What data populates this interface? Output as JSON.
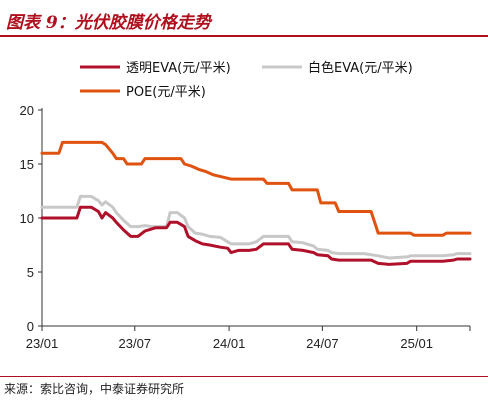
{
  "figure": {
    "title": "图表 9：光伏胶膜价格走势",
    "source": "来源：索比咨询，中泰证券研究所"
  },
  "colors": {
    "accent": "#b0101d",
    "transparent_eva": "#b0102a",
    "white_eva": "#c8c8c8",
    "poe": "#e0520f"
  },
  "chart_data": {
    "type": "line",
    "x_start": "2023-01-01",
    "x_end": "2025-04-15",
    "x_tick_labels": [
      {
        "date": "2023-01-01",
        "label": "23/01"
      },
      {
        "date": "2023-07-01",
        "label": "23/07"
      },
      {
        "date": "2024-01-01",
        "label": "24/01"
      },
      {
        "date": "2024-07-01",
        "label": "24/07"
      },
      {
        "date": "2025-01-01",
        "label": "25/01"
      }
    ],
    "ylim": [
      0,
      20
    ],
    "y_ticks": [
      0,
      5,
      10,
      15,
      20
    ],
    "grid": false,
    "legend": "top",
    "series": [
      {
        "name": "透明EVA(元/平米)",
        "color": "#b0102a",
        "points": [
          [
            "2023-01-01",
            10.0
          ],
          [
            "2023-03-10",
            10.0
          ],
          [
            "2023-03-17",
            11.0
          ],
          [
            "2023-04-07",
            11.0
          ],
          [
            "2023-04-21",
            10.6
          ],
          [
            "2023-04-28",
            10.0
          ],
          [
            "2023-05-05",
            10.5
          ],
          [
            "2023-05-19",
            10.0
          ],
          [
            "2023-05-26",
            9.6
          ],
          [
            "2023-06-09",
            8.9
          ],
          [
            "2023-06-23",
            8.3
          ],
          [
            "2023-07-07",
            8.3
          ],
          [
            "2023-07-21",
            8.8
          ],
          [
            "2023-08-04",
            9.0
          ],
          [
            "2023-08-11",
            9.1
          ],
          [
            "2023-09-01",
            9.1
          ],
          [
            "2023-09-08",
            9.6
          ],
          [
            "2023-09-22",
            9.6
          ],
          [
            "2023-10-06",
            9.2
          ],
          [
            "2023-10-13",
            8.3
          ],
          [
            "2023-10-27",
            7.9
          ],
          [
            "2023-11-10",
            7.6
          ],
          [
            "2023-11-24",
            7.5
          ],
          [
            "2023-12-15",
            7.3
          ],
          [
            "2023-12-29",
            7.2
          ],
          [
            "2024-01-05",
            6.8
          ],
          [
            "2024-01-19",
            7.0
          ],
          [
            "2024-02-09",
            7.0
          ],
          [
            "2024-02-23",
            7.1
          ],
          [
            "2024-03-08",
            7.6
          ],
          [
            "2024-03-22",
            7.6
          ],
          [
            "2024-04-26",
            7.6
          ],
          [
            "2024-05-03",
            7.1
          ],
          [
            "2024-05-24",
            7.0
          ],
          [
            "2024-06-14",
            6.8
          ],
          [
            "2024-06-21",
            6.6
          ],
          [
            "2024-07-12",
            6.5
          ],
          [
            "2024-07-19",
            6.2
          ],
          [
            "2024-08-02",
            6.1
          ],
          [
            "2024-09-20",
            6.1
          ],
          [
            "2024-10-04",
            6.1
          ],
          [
            "2024-10-18",
            5.8
          ],
          [
            "2024-11-08",
            5.7
          ],
          [
            "2024-12-13",
            5.8
          ],
          [
            "2024-12-20",
            6.0
          ],
          [
            "2025-01-24",
            6.0
          ],
          [
            "2025-02-21",
            6.0
          ],
          [
            "2025-03-14",
            6.1
          ],
          [
            "2025-03-21",
            6.2
          ],
          [
            "2025-04-15",
            6.2
          ]
        ]
      },
      {
        "name": "白色EVA(元/平米)",
        "color": "#c8c8c8",
        "points": [
          [
            "2023-01-01",
            11.0
          ],
          [
            "2023-03-10",
            11.0
          ],
          [
            "2023-03-17",
            12.0
          ],
          [
            "2023-04-07",
            12.0
          ],
          [
            "2023-04-21",
            11.6
          ],
          [
            "2023-04-28",
            11.2
          ],
          [
            "2023-05-05",
            11.5
          ],
          [
            "2023-05-19",
            11.0
          ],
          [
            "2023-05-26",
            10.5
          ],
          [
            "2023-06-09",
            9.8
          ],
          [
            "2023-06-23",
            9.2
          ],
          [
            "2023-07-07",
            9.2
          ],
          [
            "2023-07-21",
            9.3
          ],
          [
            "2023-08-04",
            9.2
          ],
          [
            "2023-09-01",
            9.2
          ],
          [
            "2023-09-08",
            10.5
          ],
          [
            "2023-09-22",
            10.5
          ],
          [
            "2023-10-06",
            10.0
          ],
          [
            "2023-10-13",
            9.2
          ],
          [
            "2023-10-27",
            8.6
          ],
          [
            "2023-11-10",
            8.5
          ],
          [
            "2023-11-24",
            8.3
          ],
          [
            "2023-12-15",
            8.2
          ],
          [
            "2023-12-29",
            7.8
          ],
          [
            "2024-01-05",
            7.6
          ],
          [
            "2024-01-19",
            7.6
          ],
          [
            "2024-02-09",
            7.6
          ],
          [
            "2024-02-23",
            7.8
          ],
          [
            "2024-03-08",
            8.3
          ],
          [
            "2024-03-22",
            8.3
          ],
          [
            "2024-04-26",
            8.3
          ],
          [
            "2024-05-03",
            7.8
          ],
          [
            "2024-05-24",
            7.7
          ],
          [
            "2024-06-14",
            7.4
          ],
          [
            "2024-06-21",
            7.1
          ],
          [
            "2024-07-12",
            7.0
          ],
          [
            "2024-07-19",
            6.8
          ],
          [
            "2024-08-02",
            6.7
          ],
          [
            "2024-09-20",
            6.7
          ],
          [
            "2024-10-04",
            6.6
          ],
          [
            "2024-10-18",
            6.5
          ],
          [
            "2024-11-08",
            6.3
          ],
          [
            "2024-12-13",
            6.4
          ],
          [
            "2024-12-20",
            6.5
          ],
          [
            "2025-01-24",
            6.5
          ],
          [
            "2025-02-21",
            6.5
          ],
          [
            "2025-03-14",
            6.6
          ],
          [
            "2025-03-21",
            6.7
          ],
          [
            "2025-04-15",
            6.7
          ]
        ]
      },
      {
        "name": "POE(元/平米)",
        "color": "#e0520f",
        "points": [
          [
            "2023-01-01",
            16.0
          ],
          [
            "2023-02-03",
            16.0
          ],
          [
            "2023-02-10",
            17.0
          ],
          [
            "2023-04-28",
            17.0
          ],
          [
            "2023-05-05",
            16.8
          ],
          [
            "2023-05-19",
            16.0
          ],
          [
            "2023-05-26",
            15.5
          ],
          [
            "2023-06-09",
            15.5
          ],
          [
            "2023-06-16",
            15.0
          ],
          [
            "2023-07-14",
            15.0
          ],
          [
            "2023-07-21",
            15.5
          ],
          [
            "2023-09-29",
            15.5
          ],
          [
            "2023-10-06",
            15.0
          ],
          [
            "2023-10-20",
            14.8
          ],
          [
            "2023-11-03",
            14.5
          ],
          [
            "2023-11-17",
            14.3
          ],
          [
            "2023-12-01",
            14.0
          ],
          [
            "2024-01-05",
            13.6
          ],
          [
            "2024-03-08",
            13.6
          ],
          [
            "2024-03-15",
            13.2
          ],
          [
            "2024-04-26",
            13.2
          ],
          [
            "2024-05-03",
            12.6
          ],
          [
            "2024-06-21",
            12.6
          ],
          [
            "2024-06-28",
            11.4
          ],
          [
            "2024-07-26",
            11.4
          ],
          [
            "2024-08-02",
            10.6
          ],
          [
            "2024-10-04",
            10.6
          ],
          [
            "2024-10-18",
            8.6
          ],
          [
            "2024-12-20",
            8.6
          ],
          [
            "2024-12-27",
            8.4
          ],
          [
            "2025-02-21",
            8.4
          ],
          [
            "2025-02-28",
            8.6
          ],
          [
            "2025-04-15",
            8.6
          ]
        ]
      }
    ]
  }
}
